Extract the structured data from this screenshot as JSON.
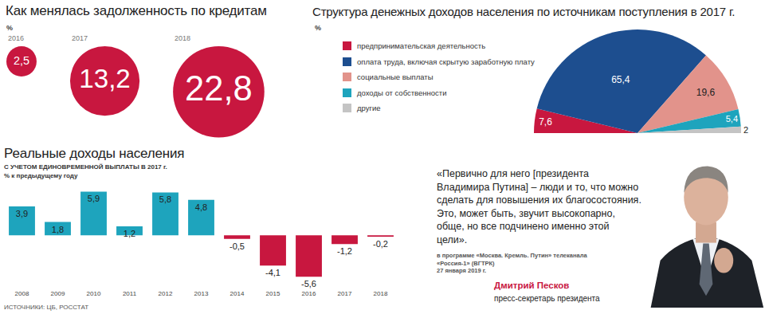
{
  "chart_data": [
    {
      "type": "bubble",
      "title": "Как менялась задолженность по кредитам",
      "subtitle": "%",
      "categories": [
        "2016",
        "2017",
        "2018"
      ],
      "values": [
        2.5,
        13.2,
        22.8
      ],
      "value_labels": [
        "2,5",
        "13,2",
        "22,8"
      ],
      "color": "#c8173f",
      "data_labels": true
    },
    {
      "type": "pie",
      "title": "Структура денежных доходов населения по источникам поступления в 2017 г.",
      "subtitle": "%",
      "categories": [
        "предпринимательская деятельность",
        "оплата труда, включая скрытую заработную плату",
        "социальные выплаты",
        "доходы от собственности",
        "другие"
      ],
      "values": [
        7.6,
        65.4,
        19.6,
        5.4,
        2
      ],
      "value_labels": [
        "7,6",
        "65,4",
        "19,6",
        "5,4",
        "2"
      ],
      "colors": [
        "#c8173f",
        "#1d4e8f",
        "#e2938b",
        "#1ea4bd",
        "#c4c4c4"
      ],
      "legend": "left",
      "data_labels": true
    },
    {
      "type": "bar",
      "title": "Реальные доходы населения",
      "subtitle": "С УЧЕТОМ ЕДИНОВРЕМЕННОЙ ВЫПЛАТЫ В 2017 г.",
      "y_label": "% к предыдущему году",
      "categories": [
        "2008",
        "2009",
        "2010",
        "2011",
        "2012",
        "2013",
        "2014",
        "2015",
        "2016",
        "2017",
        "2018"
      ],
      "values": [
        3.9,
        1.8,
        5.9,
        1.2,
        5.8,
        4.8,
        -0.5,
        -4.1,
        -5.6,
        -1.2,
        -0.2
      ],
      "value_labels": [
        "3,9",
        "1,8",
        "5,9",
        "1,2",
        "5,8",
        "4,8",
        "-0,5",
        "-4,1",
        "-5,6",
        "-1,2",
        "-0,2"
      ],
      "colors": [
        "#1ea4bd",
        "#1ea4bd",
        "#1ea4bd",
        "#1ea4bd",
        "#1ea4bd",
        "#1ea4bd",
        "#c8173f",
        "#c8173f",
        "#c8173f",
        "#c8173f",
        "#c8173f"
      ],
      "ylim": [
        -7.2,
        6.6
      ],
      "yticks": [],
      "grid": false,
      "data_labels": true,
      "tick_labels": "x",
      "source": "ИСТОЧНИКИ: ЦБ, РОССТАТ"
    }
  ],
  "quote": {
    "text": "«Первично для него [президента Владимира Путина] – люди и то, что можно сделать для повышения их благосостояния. Это, может быть, звучит высокопарно, обще, но все подчинено именно этой цели».",
    "source": [
      "в программе «Москва. Кремль. Путин» телеканала",
      "«Россия-1» (ВГТРК)",
      "27 января 2019 г."
    ],
    "author": "Дмитрий Песков",
    "role": "пресс-секретарь президента"
  }
}
